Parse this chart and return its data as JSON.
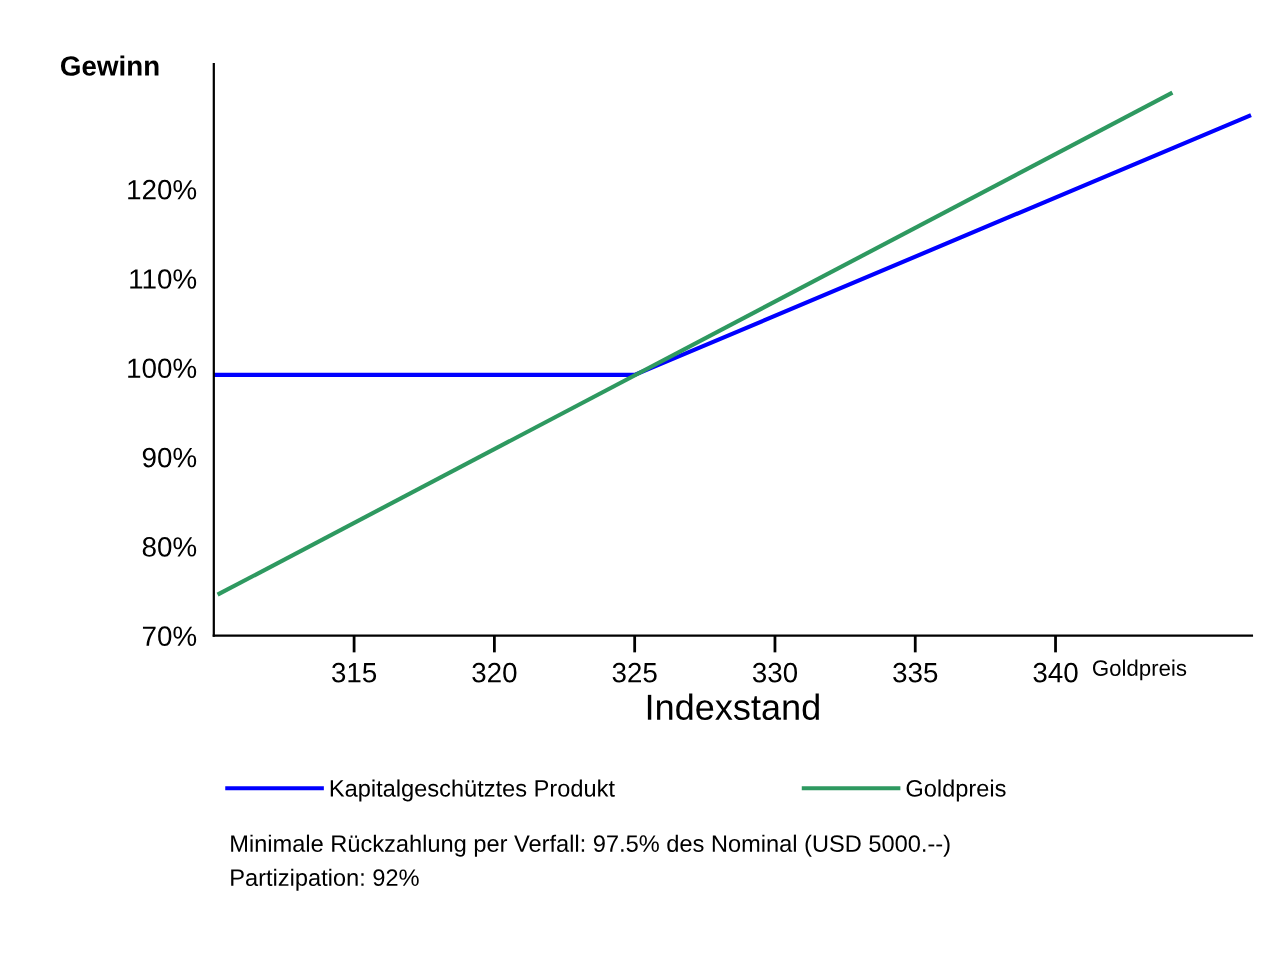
{
  "chart_data": {
    "type": "line",
    "xlabel": "Indexstand",
    "ylabel": "Gewinn",
    "xlim": [
      310,
      347
    ],
    "xticks": [
      315,
      320,
      325,
      330,
      335,
      340
    ],
    "ylim": [
      70,
      134
    ],
    "yticks": [
      {
        "value": 70,
        "label": "70%"
      },
      {
        "value": 80,
        "label": "80%"
      },
      {
        "value": 90,
        "label": "90%"
      },
      {
        "value": 100,
        "label": "100%"
      },
      {
        "value": 110,
        "label": "110%"
      },
      {
        "value": 120,
        "label": "120%"
      }
    ],
    "series": [
      {
        "name": "Kapitalgeschütztes Produkt",
        "color": "#0000ff",
        "x": [
          310,
          325,
          346.9
        ],
        "values": [
          99.2,
          99.2,
          128.2
        ]
      },
      {
        "name": "Goldpreis",
        "color": "#2e9960",
        "x": [
          310.2,
          344.1
        ],
        "values": [
          74.7,
          130.7
        ]
      }
    ],
    "legend": "bottom",
    "grid": false,
    "marker": "none",
    "line_style": "solid",
    "annotations": [
      "Goldpreis",
      "Minimale Rückzahlung per Verfall: 97.5% des Nominal (USD 5000.--)",
      "Partizipation: 92%"
    ]
  }
}
